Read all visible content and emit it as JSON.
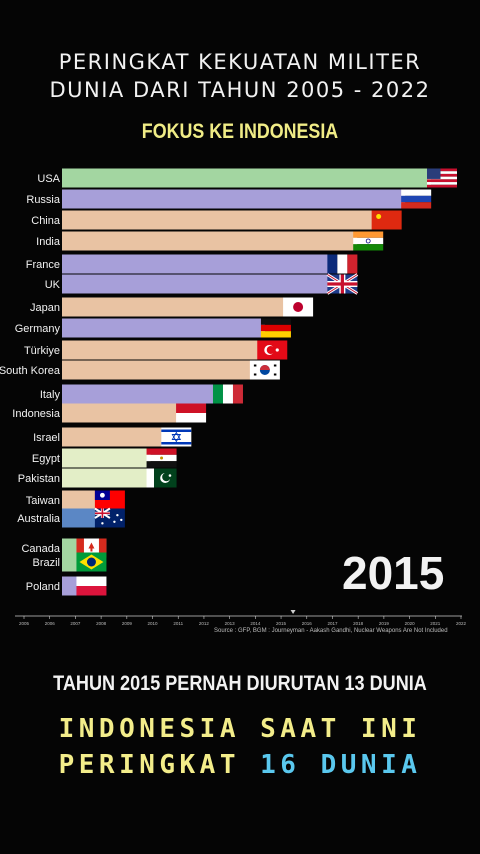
{
  "header": {
    "title_line1": "PERINGKAT KEKUATAN MILITER",
    "title_line2": "DUNIA DARI TAHUN 2005 - 2022",
    "subtitle": "FOKUS KE INDONESIA"
  },
  "chart_data": {
    "type": "bar",
    "orientation": "horizontal",
    "categories": [
      "USA",
      "Russia",
      "China",
      "India",
      "France",
      "UK",
      "Japan",
      "Germany",
      "Türkiye",
      "South Korea",
      "Italy",
      "Indonesia",
      "Israel",
      "Egypt",
      "Pakistan",
      "Taiwan",
      "Australia",
      "Canada",
      "Brazil",
      "Poland"
    ],
    "values": [
      100,
      93,
      85,
      80,
      73,
      73,
      61,
      55,
      54,
      52,
      42,
      32,
      28,
      24,
      24,
      10,
      10,
      5,
      5,
      5
    ],
    "bar_colors": [
      "#a3d6a1",
      "#a79fd9",
      "#e9c3a3",
      "#e9c3a3",
      "#a79fd9",
      "#a79fd9",
      "#e9c3a3",
      "#a79fd9",
      "#e9c3a3",
      "#e9c3a3",
      "#a79fd9",
      "#e9c3a3",
      "#e9c3a3",
      "#e3eec7",
      "#e3eec7",
      "#e9c3a3",
      "#5b87c5",
      "#a3d6a1",
      "#a3d6a1",
      "#a79fd9"
    ],
    "flags": [
      "us",
      "ru",
      "cn",
      "in",
      "fr",
      "gb",
      "jp",
      "de",
      "tr",
      "kr",
      "it",
      "id",
      "il",
      "eg",
      "pk",
      "tw",
      "au",
      "ca",
      "br",
      "pl"
    ],
    "x_ticks": [
      "2005",
      "2006",
      "2007",
      "2008",
      "2009",
      "2010",
      "2011",
      "2012",
      "2013",
      "2014",
      "2015",
      "2016",
      "2017",
      "2018",
      "2019",
      "2020",
      "2021",
      "2022"
    ],
    "xlim": [
      0,
      100
    ],
    "current_year": "2015",
    "source": "Source : GFP, BGM : Journeyman - Aakash Gandhi, Nuclear Weapons Are Not Included"
  },
  "footer": {
    "caption": "TAHUN 2015 PERNAH DIURUTAN  13  DUNIA",
    "line1": "INDONESIA SAAT INI",
    "line2_prefix": "PERINGKAT ",
    "line2_highlight": "16 DUNIA"
  }
}
